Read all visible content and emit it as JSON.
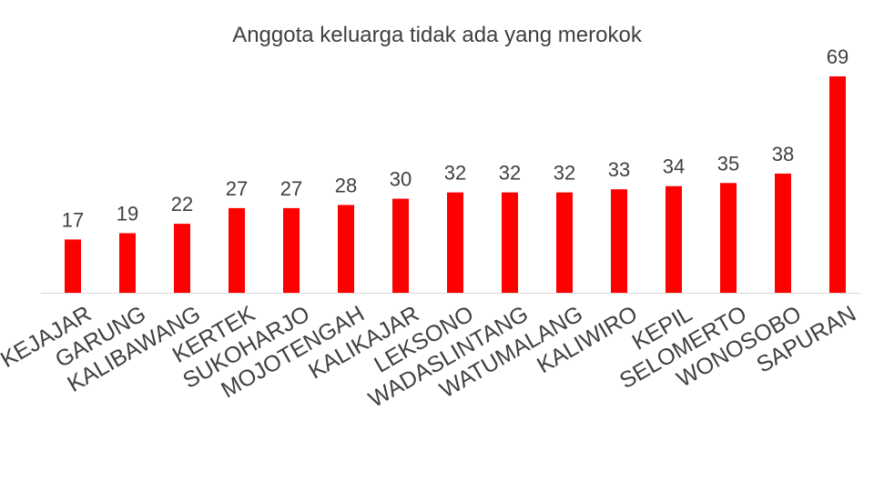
{
  "chart_data": {
    "type": "bar",
    "title": "Anggota keluarga tidak ada yang merokok",
    "categories": [
      "KEJAJAR",
      "GARUNG",
      "KALIBAWANG",
      "KERTEK",
      "SUKOHARJO",
      "MOJOTENGAH",
      "KALIKAJAR",
      "LEKSONO",
      "WADASLINTANG",
      "WATUMALANG",
      "KALIWIRO",
      "KEPIL",
      "SELOMERTO",
      "WONOSOBO",
      "SAPURAN"
    ],
    "values": [
      17,
      19,
      22,
      27,
      27,
      28,
      30,
      32,
      32,
      32,
      33,
      34,
      35,
      38,
      69
    ],
    "color": "#ff0000"
  }
}
